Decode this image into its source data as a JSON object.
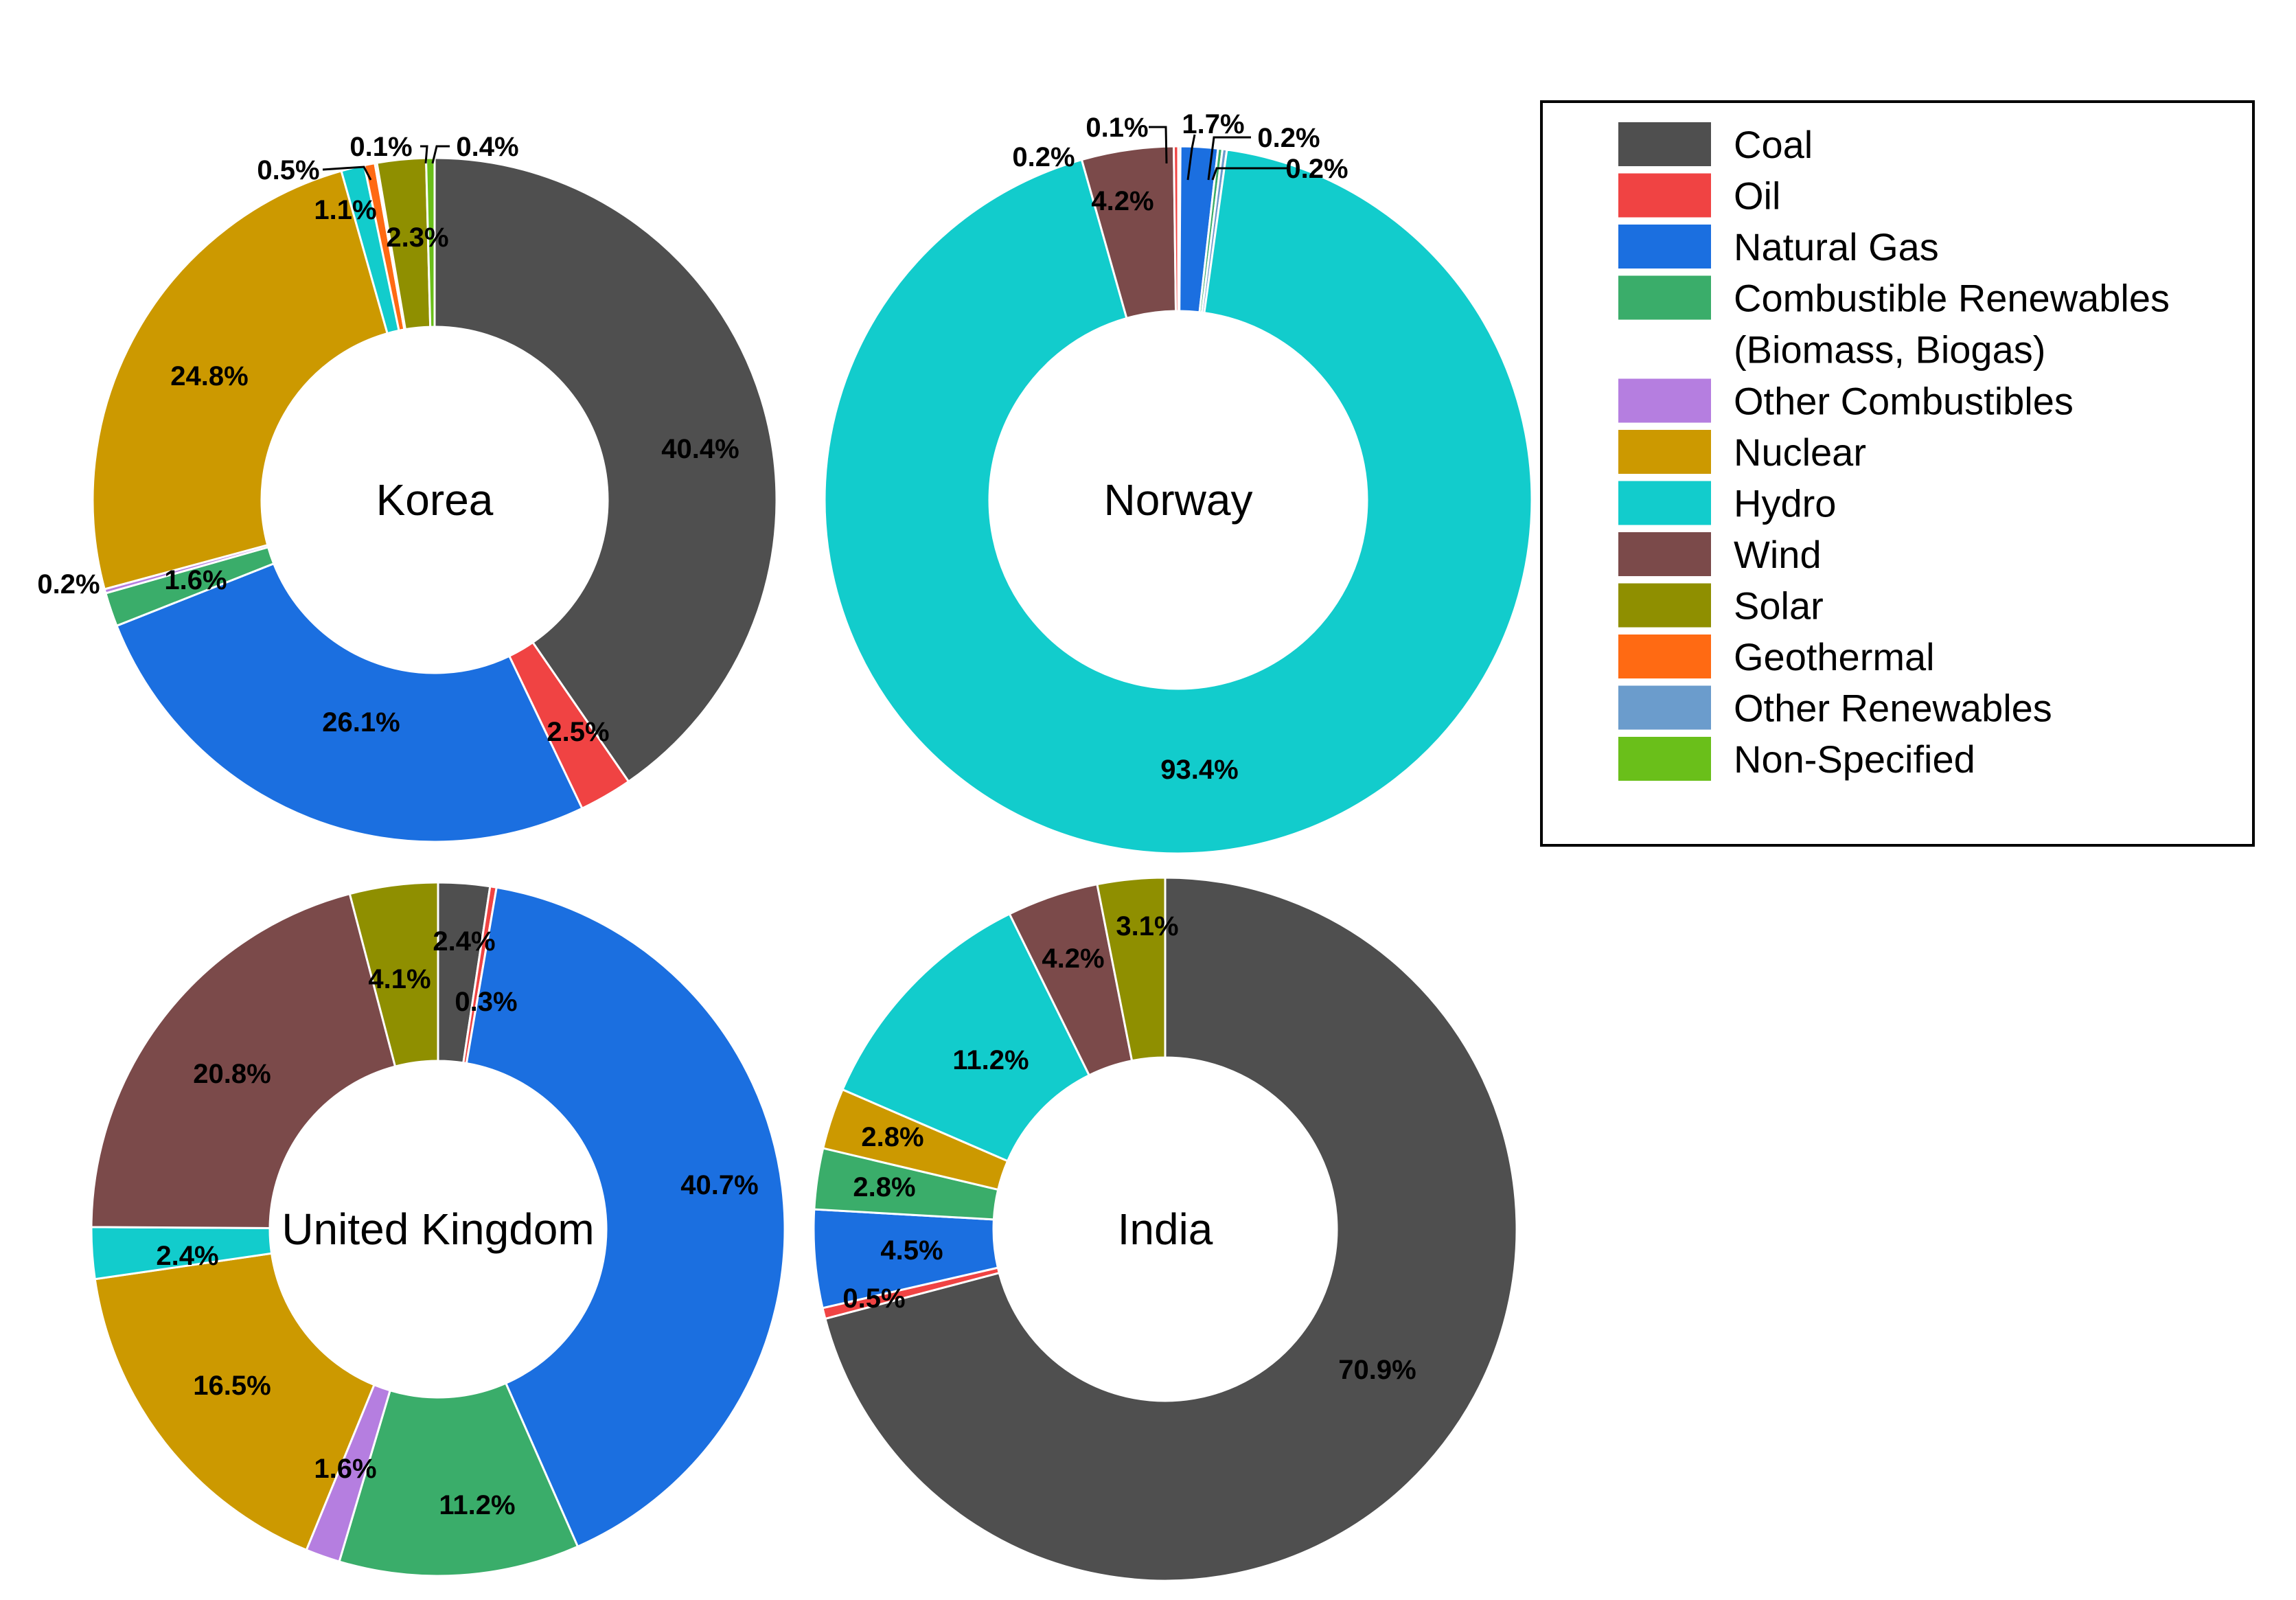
{
  "legend": {
    "items": [
      {
        "label": "Coal",
        "color": "#4f4f4f"
      },
      {
        "label": "Oil",
        "color": "#f04343"
      },
      {
        "label": "Natural Gas",
        "color": "#1b6fe0"
      },
      {
        "label": "Combustible Renewables",
        "label2": "(Biomass, Biogas)",
        "color": "#3aad6a"
      },
      {
        "label": "Other Combustibles",
        "color": "#b57ee0"
      },
      {
        "label": "Nuclear",
        "color": "#cc9900"
      },
      {
        "label": "Hydro",
        "color": "#12cccc"
      },
      {
        "label": "Wind",
        "color": "#7b4a4a"
      },
      {
        "label": "Solar",
        "color": "#8f8f00"
      },
      {
        "label": "Geothermal",
        "color": "#ff6a13"
      },
      {
        "label": "Other Renewables",
        "color": "#6b9ccc"
      },
      {
        "label": "Non-Specified",
        "color": "#6abf1a"
      }
    ]
  },
  "chart_data": [
    {
      "type": "pie",
      "center_label": "Korea",
      "slices": [
        {
          "category": "Coal",
          "value": 40.4,
          "label": "40.4%"
        },
        {
          "category": "Oil",
          "value": 2.5,
          "label": "2.5%"
        },
        {
          "category": "Natural Gas",
          "value": 26.1,
          "label": "26.1%"
        },
        {
          "category": "Combustible Renewables",
          "value": 1.6,
          "label": "1.6%"
        },
        {
          "category": "Other Combustibles",
          "value": 0.2,
          "label": "0.2%"
        },
        {
          "category": "Nuclear",
          "value": 24.8,
          "label": "24.8%"
        },
        {
          "category": "Hydro",
          "value": 1.1,
          "label": "1.1%"
        },
        {
          "category": "Geothermal",
          "value": 0.5,
          "label": "0.5%"
        },
        {
          "category": "Wind",
          "value": 0.1,
          "label": "0.1%"
        },
        {
          "category": "Solar",
          "value": 2.3,
          "label": "2.3%"
        },
        {
          "category": "Non-Specified",
          "value": 0.4,
          "label": "0.4%"
        }
      ]
    },
    {
      "type": "pie",
      "center_label": "Norway",
      "slices": [
        {
          "category": "Coal",
          "value": 0.1,
          "label": "0.1%"
        },
        {
          "category": "Natural Gas",
          "value": 1.7,
          "label": "1.7%"
        },
        {
          "category": "Combustible Renewables",
          "value": 0.2,
          "label": "0.2%"
        },
        {
          "category": "Other Renewables",
          "value": 0.2,
          "label": "0.2%"
        },
        {
          "category": "Hydro",
          "value": 93.4,
          "label": "93.4%"
        },
        {
          "category": "Wind",
          "value": 4.2,
          "label": "4.2%"
        },
        {
          "category": "Oil",
          "value": 0.2,
          "label": "0.2%"
        }
      ]
    },
    {
      "type": "pie",
      "center_label": "United Kingdom",
      "slices": [
        {
          "category": "Coal",
          "value": 2.4,
          "label": "2.4%"
        },
        {
          "category": "Oil",
          "value": 0.3,
          "label": "0.3%"
        },
        {
          "category": "Natural Gas",
          "value": 40.7,
          "label": "40.7%"
        },
        {
          "category": "Combustible Renewables",
          "value": 11.2,
          "label": "11.2%"
        },
        {
          "category": "Other Combustibles",
          "value": 1.6,
          "label": "1.6%"
        },
        {
          "category": "Nuclear",
          "value": 16.5,
          "label": "16.5%"
        },
        {
          "category": "Hydro",
          "value": 2.4,
          "label": "2.4%"
        },
        {
          "category": "Wind",
          "value": 20.8,
          "label": "20.8%"
        },
        {
          "category": "Solar",
          "value": 4.1,
          "label": "4.1%"
        }
      ]
    },
    {
      "type": "pie",
      "center_label": "India",
      "slices": [
        {
          "category": "Coal",
          "value": 70.9,
          "label": "70.9%"
        },
        {
          "category": "Oil",
          "value": 0.5,
          "label": "0.5%"
        },
        {
          "category": "Natural Gas",
          "value": 4.5,
          "label": "4.5%"
        },
        {
          "category": "Combustible Renewables",
          "value": 2.8,
          "label": "2.8%"
        },
        {
          "category": "Nuclear",
          "value": 2.8,
          "label": "2.8%"
        },
        {
          "category": "Hydro",
          "value": 11.2,
          "label": "11.2%"
        },
        {
          "category": "Wind",
          "value": 4.2,
          "label": "4.2%"
        },
        {
          "category": "Solar",
          "value": 3.1,
          "label": "3.1%"
        }
      ]
    }
  ]
}
